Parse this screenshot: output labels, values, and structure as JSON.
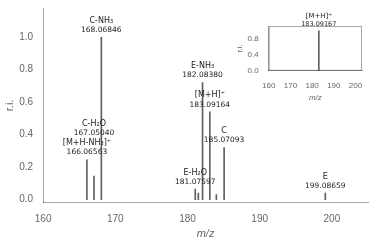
{
  "chart_data": [
    {
      "type": "stem",
      "xlabel": "m/z",
      "ylabel": "r.i.",
      "x": [
        166.06563,
        167.0504,
        168.06846,
        181.07597,
        181.5,
        182.0838,
        183.09164,
        184.0,
        185.07093,
        199.08659
      ],
      "values": [
        0.245,
        0.145,
        1.0,
        0.065,
        0.04,
        0.72,
        0.54,
        0.03,
        0.32,
        0.04
      ],
      "color": "#606060",
      "xlim": [
        160,
        205
      ],
      "ylim": [
        -0.02,
        1.18
      ],
      "xticks": [
        160,
        170,
        180,
        190,
        200
      ],
      "yticks": [
        {
          "value": 0,
          "label": "0.0"
        },
        0.2,
        0.4,
        0.6,
        0.8,
        {
          "value": 1,
          "label": "1.0"
        }
      ],
      "grid": false,
      "annotations": [
        {
          "x": 168.06846,
          "y": 1.0,
          "text": "C-NH₃",
          "label": "168.06846"
        },
        {
          "x": 166.06563,
          "y": 0.245,
          "text": "[M+H-NH₃]⁺",
          "label": "166.06563"
        },
        {
          "x": 167.0504,
          "y": 0.145,
          "text": "C-H₂O",
          "label": "167.05040"
        },
        {
          "x": 182.0838,
          "y": 0.72,
          "text": "E-NH₃",
          "label": "182.08380"
        },
        {
          "x": 183.09164,
          "y": 0.54,
          "text": "[M+H]⁺",
          "label": "183.09164"
        },
        {
          "x": 185.07093,
          "y": 0.32,
          "text": "C",
          "label": "185.07093"
        },
        {
          "x": 181.07597,
          "y": 0.065,
          "text": "E-H₂O",
          "label": "181.07597"
        },
        {
          "x": 199.08659,
          "y": 0.04,
          "text": "E",
          "label": "199.08659"
        }
      ]
    },
    {
      "type": "stem",
      "xlabel": "m/z",
      "ylabel": "r.i.",
      "x": [
        183.09167
      ],
      "values": [
        1.0
      ],
      "color": "#606060",
      "xlim": [
        160,
        203
      ],
      "ylim": [
        0.0,
        1.12
      ],
      "xticks": [
        160,
        170,
        180,
        190,
        200
      ],
      "yticks": [
        {
          "value": 0,
          "label": "0.0"
        },
        0.4,
        0.8
      ],
      "grid": false,
      "annotations": [
        {
          "x": 183.09167,
          "y": 1.0,
          "text": "[M+H]⁺",
          "label": "183.09167"
        }
      ]
    }
  ]
}
